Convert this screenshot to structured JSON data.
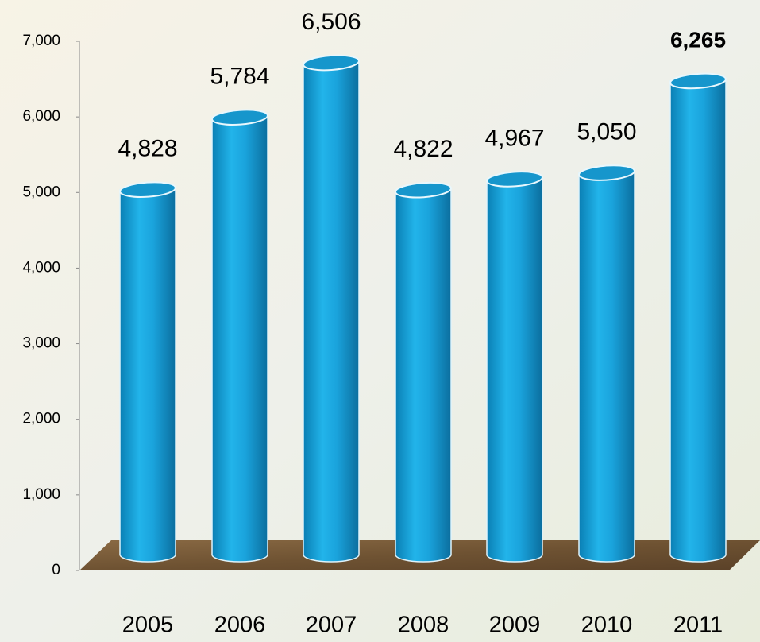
{
  "chart_data": {
    "type": "cylinder-bar",
    "categories": [
      "2005",
      "2006",
      "2007",
      "2008",
      "2009",
      "2010",
      "2011"
    ],
    "values": [
      4828,
      5784,
      6506,
      4822,
      4967,
      5050,
      6265
    ],
    "value_labels": [
      "4,828",
      "5,784",
      "6,506",
      "4,822",
      "4,967",
      "5,050",
      "6,265"
    ],
    "color": "#1aa3dc",
    "ylim": [
      0,
      7000
    ],
    "yticks": [
      0,
      {
        "value": 1000,
        "label": "1,000"
      },
      {
        "value": 2000,
        "label": "2,000"
      },
      {
        "value": 3000,
        "label": "3,000"
      },
      {
        "value": 4000,
        "label": "4,000"
      },
      {
        "value": 5000,
        "label": "5,000"
      },
      {
        "value": 6000,
        "label": "6,000"
      },
      {
        "value": 7000,
        "label": "7,000"
      }
    ]
  }
}
